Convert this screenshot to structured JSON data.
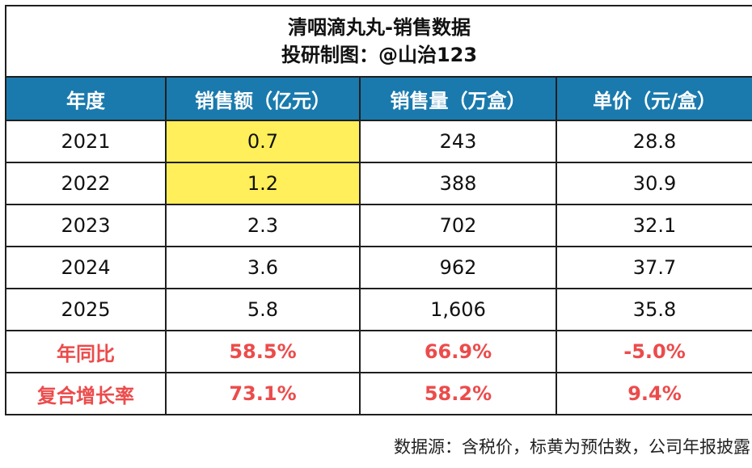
{
  "title": {
    "line1": "清咽滴丸丸-销售数据",
    "line2": "投研制图：@山治123"
  },
  "table": {
    "headers": [
      "年度",
      "销售额（亿元）",
      "销售量（万盒）",
      "单价（元/盒）"
    ],
    "rows": [
      {
        "year": "2021",
        "sales": "0.7",
        "volume": "243",
        "price": "28.8"
      },
      {
        "year": "2022",
        "sales": "1.2",
        "volume": "388",
        "price": "30.9"
      },
      {
        "year": "2023",
        "sales": "2.3",
        "volume": "702",
        "price": "32.1"
      },
      {
        "year": "2024",
        "sales": "3.6",
        "volume": "962",
        "price": "37.7"
      },
      {
        "year": "2025",
        "sales": "5.8",
        "volume": "1,606",
        "price": "35.8"
      }
    ],
    "yoy": {
      "label": "年同比",
      "sales": "58.5%",
      "volume": "66.9%",
      "price": "-5.0%"
    },
    "cagr": {
      "label": "复合增长率",
      "sales": "73.1%",
      "volume": "58.2%",
      "price": "9.4%"
    }
  },
  "footer": "数据源：含税价，标黄为预估数，公司年报披露",
  "chart_data": {
    "type": "table",
    "title": "清咽滴丸丸-销售数据",
    "subtitle": "投研制图：@山治123",
    "columns": [
      "年度",
      "销售额（亿元）",
      "销售量（万盒）",
      "单价（元/盒）"
    ],
    "rows": [
      [
        "2021",
        0.7,
        243,
        28.8
      ],
      [
        "2022",
        1.2,
        388,
        30.9
      ],
      [
        "2023",
        2.3,
        702,
        32.1
      ],
      [
        "2024",
        3.6,
        962,
        37.7
      ],
      [
        "2025",
        5.8,
        1606,
        35.8
      ]
    ],
    "summary_rows": [
      [
        "年同比",
        "58.5%",
        "66.9%",
        "-5.0%"
      ],
      [
        "复合增长率",
        "73.1%",
        "58.2%",
        "9.4%"
      ]
    ],
    "highlighted_cells": [
      [
        "2021",
        "销售额（亿元）"
      ],
      [
        "2022",
        "销售额（亿元）"
      ]
    ],
    "colors": {
      "header_bg": "#1a7aad",
      "header_text": "#ffffff",
      "highlight": "#ffef5a",
      "stat_text": "#ec4b4b"
    }
  }
}
